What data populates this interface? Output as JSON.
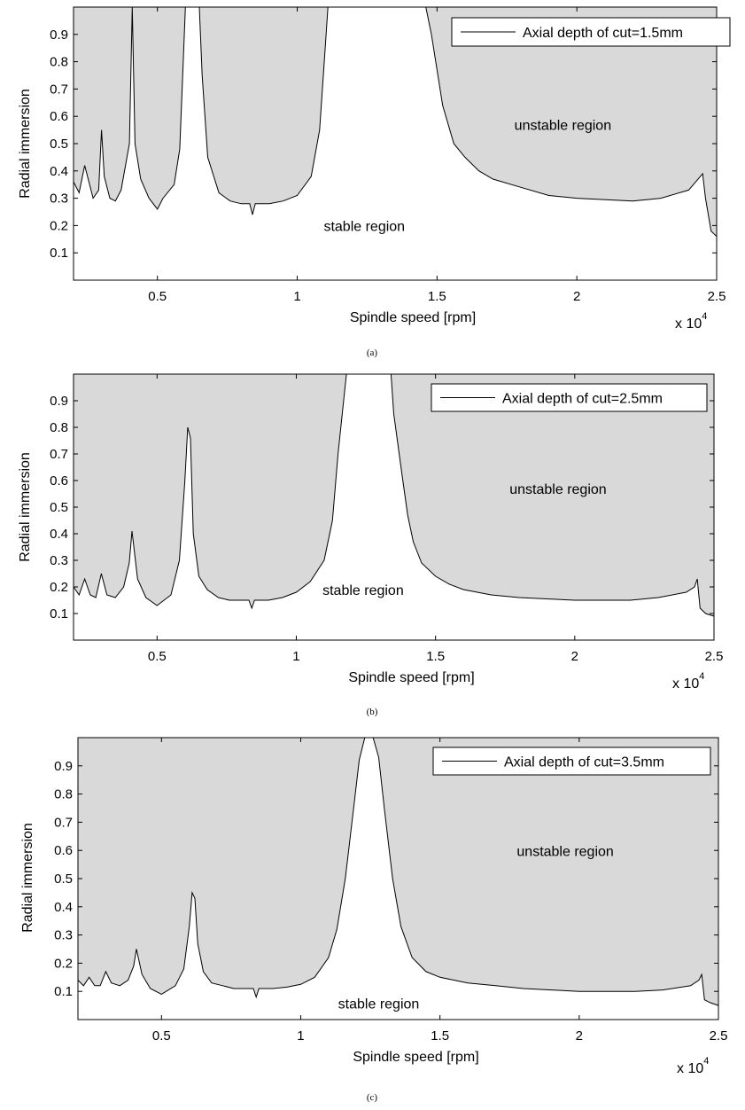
{
  "chart_data": [
    {
      "type": "area",
      "caption": "(a)",
      "xlabel": "Spindle speed [rpm]",
      "ylabel": "Radial immersion",
      "x_multiplier": "x 10",
      "x_multiplier_exp": "4",
      "xlim": [
        2000,
        25000
      ],
      "ylim": [
        0,
        1
      ],
      "xticks": [
        5000,
        10000,
        15000,
        20000,
        25000
      ],
      "xtick_labels": [
        "0.5",
        "1",
        "1.5",
        "2",
        "2.5"
      ],
      "yticks": [
        0.1,
        0.2,
        0.3,
        0.4,
        0.5,
        0.6,
        0.7,
        0.8,
        0.9
      ],
      "ytick_labels": [
        "0.1",
        "0.2",
        "0.3",
        "0.4",
        "0.5",
        "0.6",
        "0.7",
        "0.8",
        "0.9"
      ],
      "legend": "Axial depth of cut=1.5mm",
      "legend_position": "top-right",
      "unstable_label": "unstable region",
      "unstable_label_at": [
        19500,
        0.55
      ],
      "stable_label": "stable region",
      "stable_label_at": [
        12400,
        0.18
      ],
      "fill_color": "#d9d9d9",
      "series": [
        {
          "x": [
            2000,
            2200,
            2400,
            2500,
            2700,
            2900,
            3000,
            3100,
            3300,
            3500,
            3700,
            4000,
            4100,
            4200,
            4400,
            4700,
            5000,
            5200,
            5600,
            5800,
            6000,
            6100,
            6200,
            6500,
            6600,
            6800,
            7200,
            7600,
            8000,
            8300,
            8400,
            8500,
            9000,
            9500,
            10000,
            10500,
            10800,
            11000,
            11100,
            14600,
            14800,
            15200,
            15600,
            16000,
            16500,
            17000,
            18000,
            19000,
            20000,
            22000,
            23000,
            24000,
            24500,
            24600,
            24800,
            25000
          ],
          "y": [
            0.36,
            0.32,
            0.42,
            0.38,
            0.3,
            0.33,
            0.55,
            0.38,
            0.3,
            0.29,
            0.33,
            0.5,
            1.0,
            0.5,
            0.37,
            0.3,
            0.26,
            0.3,
            0.35,
            0.48,
            1.0,
            1.0,
            1.0,
            1.0,
            0.75,
            0.45,
            0.32,
            0.29,
            0.28,
            0.28,
            0.24,
            0.28,
            0.28,
            0.29,
            0.31,
            0.38,
            0.55,
            0.85,
            1.0,
            1.0,
            0.9,
            0.64,
            0.5,
            0.45,
            0.4,
            0.37,
            0.34,
            0.31,
            0.3,
            0.29,
            0.3,
            0.33,
            0.39,
            0.3,
            0.18,
            0.16
          ]
        }
      ]
    },
    {
      "type": "area",
      "caption": "(b)",
      "xlabel": "Spindle speed [rpm]",
      "ylabel": "Radial immersion",
      "x_multiplier": "x 10",
      "x_multiplier_exp": "4",
      "xlim": [
        2000,
        25000
      ],
      "ylim": [
        0,
        1
      ],
      "xticks": [
        5000,
        10000,
        15000,
        20000,
        25000
      ],
      "xtick_labels": [
        "0.5",
        "1",
        "1.5",
        "2",
        "2.5"
      ],
      "yticks": [
        0.1,
        0.2,
        0.3,
        0.4,
        0.5,
        0.6,
        0.7,
        0.8,
        0.9
      ],
      "ytick_labels": [
        "0.1",
        "0.2",
        "0.3",
        "0.4",
        "0.5",
        "0.6",
        "0.7",
        "0.8",
        "0.9"
      ],
      "legend": "Axial depth of cut=2.5mm",
      "legend_position": "top-right",
      "unstable_label": "unstable region",
      "unstable_label_at": [
        19400,
        0.55
      ],
      "stable_label": "stable region",
      "stable_label_at": [
        12400,
        0.17
      ],
      "fill_color": "#d9d9d9",
      "series": [
        {
          "x": [
            2000,
            2200,
            2400,
            2600,
            2800,
            3000,
            3200,
            3500,
            3800,
            4000,
            4100,
            4300,
            4600,
            5000,
            5500,
            5800,
            6000,
            6100,
            6200,
            6300,
            6500,
            6800,
            7200,
            7600,
            8000,
            8300,
            8400,
            8500,
            9000,
            9500,
            10000,
            10500,
            11000,
            11300,
            11500,
            11700,
            11800,
            13400,
            13500,
            13800,
            14000,
            14200,
            14500,
            15000,
            15500,
            16000,
            17000,
            18000,
            19000,
            20000,
            22000,
            23000,
            24000,
            24300,
            24400,
            24500,
            24700,
            25000
          ],
          "y": [
            0.2,
            0.17,
            0.23,
            0.17,
            0.16,
            0.25,
            0.17,
            0.16,
            0.2,
            0.29,
            0.41,
            0.23,
            0.16,
            0.13,
            0.17,
            0.3,
            0.6,
            0.8,
            0.76,
            0.4,
            0.24,
            0.19,
            0.16,
            0.15,
            0.15,
            0.15,
            0.12,
            0.15,
            0.15,
            0.16,
            0.18,
            0.22,
            0.3,
            0.45,
            0.7,
            0.9,
            1.0,
            1.0,
            0.85,
            0.62,
            0.47,
            0.37,
            0.29,
            0.24,
            0.21,
            0.19,
            0.17,
            0.16,
            0.155,
            0.15,
            0.15,
            0.16,
            0.18,
            0.2,
            0.23,
            0.12,
            0.1,
            0.09
          ]
        }
      ]
    },
    {
      "type": "area",
      "caption": "(c)",
      "xlabel": "Spindle speed [rpm]",
      "ylabel": "Radial immersion",
      "x_multiplier": "x 10",
      "x_multiplier_exp": "4",
      "xlim": [
        2000,
        25000
      ],
      "ylim": [
        0,
        1
      ],
      "xticks": [
        5000,
        10000,
        15000,
        20000,
        25000
      ],
      "xtick_labels": [
        "0.5",
        "1",
        "1.5",
        "2",
        "2.5"
      ],
      "yticks": [
        0.1,
        0.2,
        0.3,
        0.4,
        0.5,
        0.6,
        0.7,
        0.8,
        0.9
      ],
      "ytick_labels": [
        "0.1",
        "0.2",
        "0.3",
        "0.4",
        "0.5",
        "0.6",
        "0.7",
        "0.8",
        "0.9"
      ],
      "legend": "Axial depth of cut=3.5mm",
      "legend_position": "top-right",
      "unstable_label": "unstable region",
      "unstable_label_at": [
        19500,
        0.58
      ],
      "stable_label": "stable region",
      "stable_label_at": [
        12800,
        0.04
      ],
      "fill_color": "#d9d9d9",
      "series": [
        {
          "x": [
            2000,
            2200,
            2400,
            2600,
            2800,
            3000,
            3200,
            3500,
            3800,
            4000,
            4100,
            4300,
            4600,
            5000,
            5500,
            5800,
            6000,
            6100,
            6200,
            6300,
            6500,
            6800,
            7200,
            7600,
            8000,
            8300,
            8400,
            8500,
            9000,
            9500,
            10000,
            10500,
            11000,
            11300,
            11600,
            11900,
            12100,
            12300,
            12600,
            12800,
            13000,
            13300,
            13600,
            14000,
            14500,
            15000,
            15500,
            16000,
            17000,
            18000,
            19000,
            20000,
            22000,
            23000,
            24000,
            24300,
            24400,
            24500,
            24700,
            25000
          ],
          "y": [
            0.14,
            0.12,
            0.15,
            0.12,
            0.12,
            0.17,
            0.13,
            0.12,
            0.14,
            0.19,
            0.25,
            0.16,
            0.11,
            0.09,
            0.12,
            0.18,
            0.33,
            0.45,
            0.43,
            0.27,
            0.17,
            0.13,
            0.12,
            0.11,
            0.11,
            0.11,
            0.08,
            0.11,
            0.11,
            0.115,
            0.125,
            0.15,
            0.22,
            0.32,
            0.5,
            0.75,
            0.92,
            1.0,
            1.0,
            0.93,
            0.75,
            0.5,
            0.33,
            0.22,
            0.17,
            0.15,
            0.14,
            0.13,
            0.12,
            0.11,
            0.105,
            0.1,
            0.1,
            0.105,
            0.12,
            0.14,
            0.16,
            0.07,
            0.06,
            0.05
          ]
        }
      ]
    }
  ]
}
